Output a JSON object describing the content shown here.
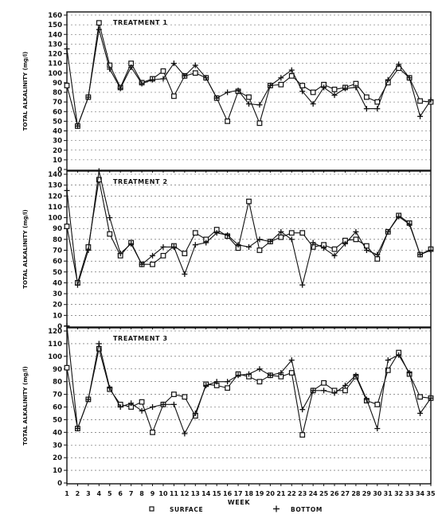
{
  "xlabel": "WEEK",
  "legend": [
    {
      "name": "SURFACE",
      "marker": "square"
    },
    {
      "name": "BOTTOM",
      "marker": "plus"
    }
  ],
  "chart_data": [
    {
      "type": "line",
      "title": "TREATMENT 1",
      "ylabel": "TOTAL ALKALINITY (mg/l)",
      "xlabel": "WEEK",
      "ylim": [
        0,
        160
      ],
      "yticks": [
        0,
        10,
        20,
        30,
        40,
        50,
        60,
        70,
        80,
        90,
        100,
        110,
        120,
        130,
        140,
        150,
        160
      ],
      "x": [
        1,
        2,
        3,
        4,
        5,
        6,
        7,
        8,
        9,
        10,
        11,
        12,
        13,
        14,
        15,
        16,
        17,
        18,
        19,
        20,
        21,
        22,
        23,
        24,
        25,
        26,
        27,
        28,
        29,
        30,
        31,
        32,
        33,
        34,
        35
      ],
      "series": [
        {
          "name": "SURFACE",
          "marker": "square",
          "values": [
            87,
            45,
            75,
            152,
            108,
            85,
            110,
            90,
            94,
            102,
            76,
            97,
            100,
            95,
            74,
            50,
            81,
            75,
            48,
            87,
            88,
            97,
            87,
            80,
            88,
            83,
            85,
            89,
            75,
            70,
            90,
            105,
            95,
            71,
            70
          ]
        },
        {
          "name": "BOTTOM",
          "marker": "plus",
          "values": [
            125,
            45,
            75,
            145,
            104,
            84,
            106,
            89,
            93,
            94,
            110,
            97,
            108,
            95,
            74,
            80,
            82,
            68,
            67,
            87,
            95,
            103,
            81,
            68,
            85,
            77,
            84,
            85,
            63,
            63,
            93,
            109,
            95,
            55,
            72
          ]
        }
      ]
    },
    {
      "type": "line",
      "title": "TREATMENT 2",
      "ylabel": "TOTAL ALKALINITY (mg/l)",
      "xlabel": "WEEK",
      "ylim": [
        0,
        140
      ],
      "yticks": [
        0,
        10,
        20,
        30,
        40,
        50,
        60,
        70,
        80,
        90,
        100,
        110,
        120,
        130,
        140
      ],
      "x": [
        1,
        2,
        3,
        4,
        5,
        6,
        7,
        8,
        9,
        10,
        11,
        12,
        13,
        14,
        15,
        16,
        17,
        18,
        19,
        20,
        21,
        22,
        23,
        24,
        25,
        26,
        27,
        28,
        29,
        30,
        31,
        32,
        33,
        34,
        35
      ],
      "series": [
        {
          "name": "SURFACE",
          "marker": "square",
          "values": [
            92,
            40,
            73,
            135,
            85,
            65,
            77,
            57,
            57,
            65,
            74,
            67,
            86,
            80,
            89,
            83,
            72,
            115,
            70,
            78,
            82,
            86,
            86,
            73,
            75,
            71,
            79,
            80,
            74,
            62,
            87,
            102,
            95,
            66,
            71
          ]
        },
        {
          "name": "BOTTOM",
          "marker": "plus",
          "values": [
            125,
            38,
            70,
            143,
            100,
            67,
            76,
            57,
            65,
            73,
            73,
            48,
            75,
            77,
            86,
            84,
            75,
            73,
            80,
            78,
            87,
            80,
            38,
            77,
            72,
            65,
            76,
            87,
            70,
            66,
            87,
            101,
            94,
            66,
            70
          ]
        }
      ]
    },
    {
      "type": "line",
      "title": "TREATMENT 3",
      "ylabel": "TOTAL ALKALINITY (mg/l)",
      "xlabel": "WEEK",
      "ylim": [
        0,
        120
      ],
      "yticks": [
        0,
        10,
        20,
        30,
        40,
        50,
        60,
        70,
        80,
        90,
        100,
        110,
        120
      ],
      "x": [
        1,
        2,
        3,
        4,
        5,
        6,
        7,
        8,
        9,
        10,
        11,
        12,
        13,
        14,
        15,
        16,
        17,
        18,
        19,
        20,
        21,
        22,
        23,
        24,
        25,
        26,
        27,
        28,
        29,
        30,
        31,
        32,
        33,
        34,
        35
      ],
      "series": [
        {
          "name": "SURFACE",
          "marker": "square",
          "values": [
            91,
            43,
            66,
            106,
            74,
            62,
            60,
            64,
            40,
            62,
            70,
            68,
            53,
            78,
            77,
            75,
            86,
            84,
            80,
            85,
            84,
            87,
            38,
            73,
            79,
            73,
            73,
            84,
            65,
            62,
            89,
            103,
            86,
            68,
            67
          ]
        },
        {
          "name": "BOTTOM",
          "marker": "plus",
          "values": [
            124,
            43,
            66,
            110,
            75,
            60,
            63,
            57,
            60,
            62,
            62,
            39,
            55,
            77,
            80,
            80,
            85,
            86,
            90,
            85,
            87,
            97,
            58,
            73,
            73,
            71,
            77,
            85,
            66,
            43,
            97,
            101,
            87,
            55,
            67
          ]
        }
      ]
    }
  ]
}
